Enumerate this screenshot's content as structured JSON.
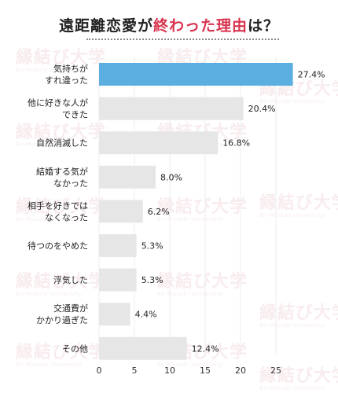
{
  "title": {
    "before": "遠距離恋愛が",
    "highlight": "終わった理由",
    "after": "は？"
  },
  "watermark": {
    "text": "縁結び大学",
    "sub": "En-Musubi University"
  },
  "colors": {
    "highlight_bar": "#5aaee0",
    "bar": "#e6e6e6",
    "title_accent": "#d8344e",
    "grid": "#eeeeee"
  },
  "chart_data": {
    "type": "bar",
    "orientation": "horizontal",
    "title": "遠距離恋愛が終わった理由は？",
    "categories": [
      [
        "気持ちが",
        "すれ違った"
      ],
      [
        "他に好きな人が",
        "できた"
      ],
      [
        "自然消滅した"
      ],
      [
        "結婚する気が",
        "なかった"
      ],
      [
        "相手を好きでは",
        "なくなった"
      ],
      [
        "待つのをやめた"
      ],
      [
        "浮気した"
      ],
      [
        "交通費が",
        "かかり過ぎた"
      ],
      [
        "その他"
      ]
    ],
    "values": [
      27.4,
      20.4,
      16.8,
      8.0,
      6.2,
      5.3,
      5.3,
      4.4,
      12.4
    ],
    "value_labels": [
      "27.4%",
      "20.4%",
      "16.8%",
      "8.0%",
      "6.2%",
      "5.3%",
      "5.3%",
      "4.4%",
      "12.4%"
    ],
    "highlight_index": 0,
    "xticks": [
      0,
      5,
      10,
      15,
      20,
      25
    ],
    "xlim": [
      0,
      28
    ],
    "grid": true
  }
}
